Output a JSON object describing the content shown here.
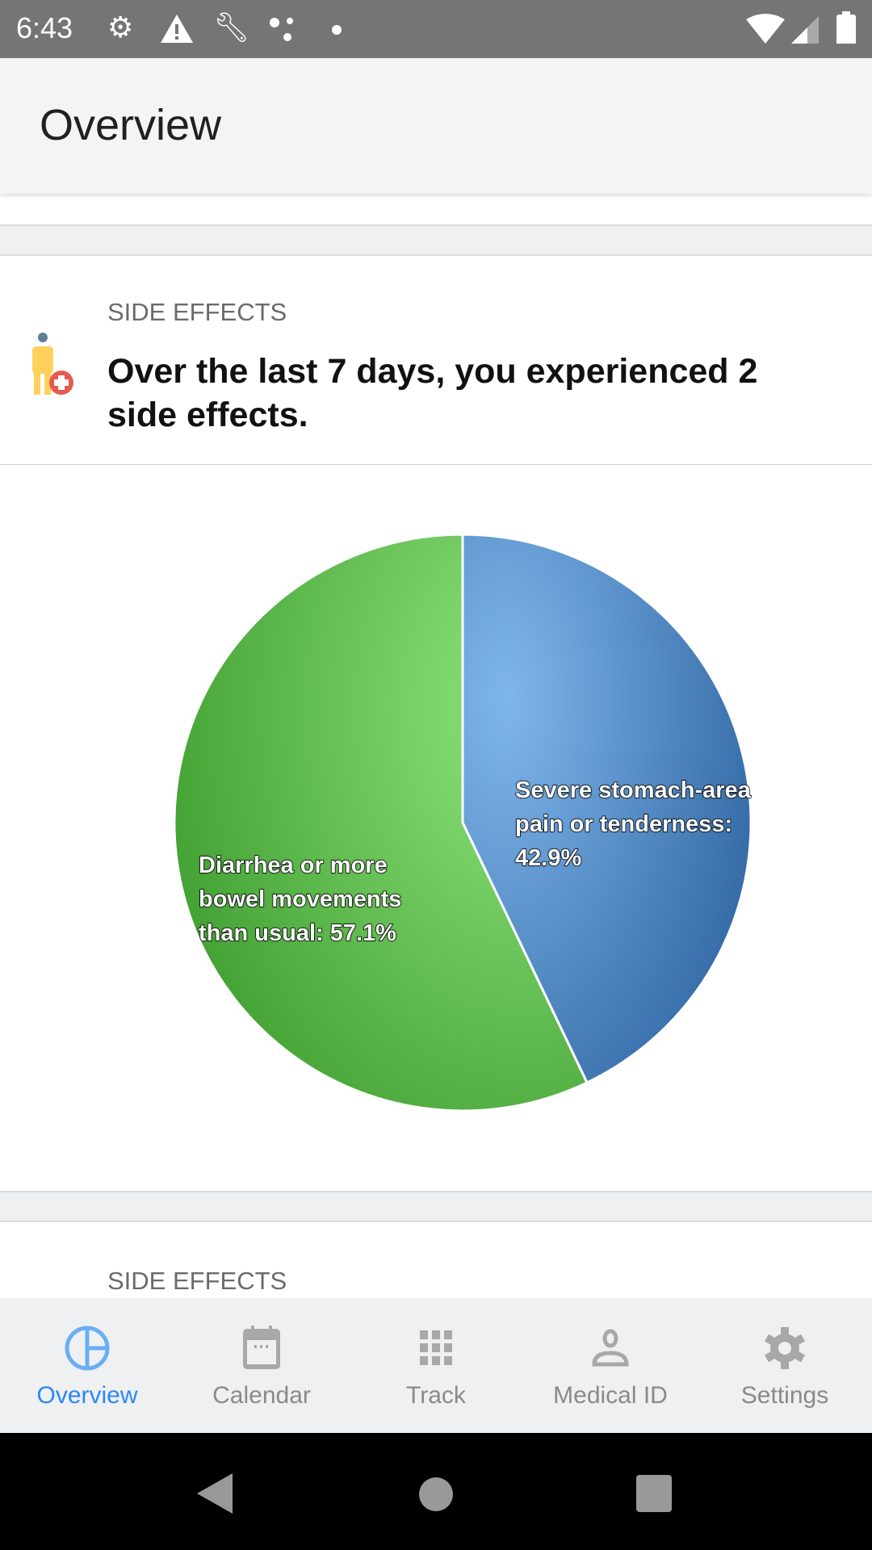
{
  "status_bar": {
    "time": "6:43",
    "icons": [
      "settings-icon",
      "warning-icon",
      "wrench-icon",
      "dots-icon",
      "dot-icon",
      "wifi-icon",
      "signal-icon",
      "battery-icon"
    ]
  },
  "app_bar": {
    "title": "Overview"
  },
  "side_effects_card": {
    "eyebrow": "SIDE EFFECTS",
    "headline": "Over the last 7 days, you experienced 2 side effects.",
    "icon": "person-medical-icon"
  },
  "chart_data": {
    "type": "pie",
    "slices": [
      {
        "label": "Severe stomach-area pain or tenderness",
        "value": 42.9,
        "display": "Severe stomach-area pain or tenderness: 42.9%",
        "color": "#4a86c5"
      },
      {
        "label": "Diarrhea or more bowel movements than usual",
        "value": 57.1,
        "display": "Diarrhea or more bowel movements than usual: 57.1%",
        "color": "#5cbb4a"
      }
    ]
  },
  "next_card": {
    "eyebrow": "SIDE EFFECTS"
  },
  "bottom_nav": {
    "accent": "#2b87f5",
    "items": [
      {
        "label": "Overview",
        "icon": "pie-chart-icon",
        "active": true
      },
      {
        "label": "Calendar",
        "icon": "calendar-icon"
      },
      {
        "label": "Track",
        "icon": "grid-icon"
      },
      {
        "label": "Medical ID",
        "icon": "person-icon"
      },
      {
        "label": "Settings",
        "icon": "gear-icon"
      }
    ]
  }
}
